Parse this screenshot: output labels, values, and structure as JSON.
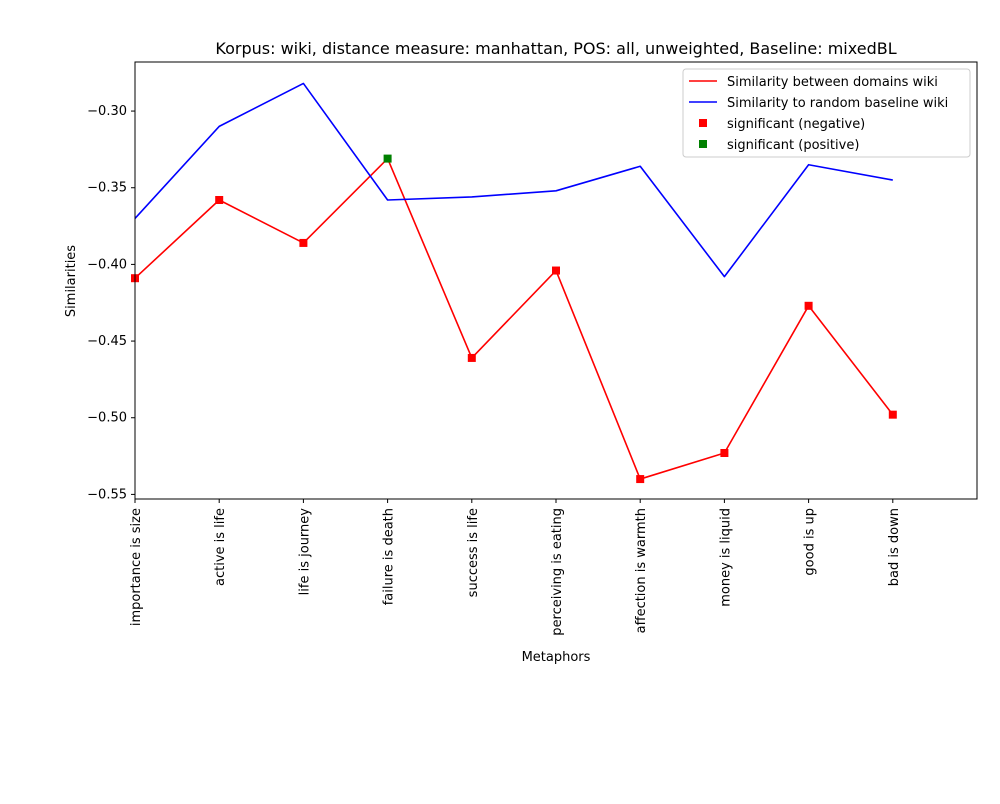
{
  "chart_data": {
    "type": "line",
    "title": "Korpus: wiki, distance measure: manhattan, POS: all, unweighted, Baseline: mixedBL",
    "xlabel": "Metaphors",
    "ylabel": "Similarities",
    "categories": [
      "importance is size",
      "active is life",
      "life is journey",
      "failure is death",
      "success is life",
      "perceiving is eating",
      "affection is warmth",
      "money is liquid",
      "good is up",
      "bad is down"
    ],
    "xlim": [
      0,
      10
    ],
    "ylim": [
      -0.553,
      -0.268
    ],
    "yticks": [
      -0.55,
      -0.5,
      -0.45,
      -0.4,
      -0.35,
      -0.3
    ],
    "ytick_labels": [
      "−0.55",
      "−0.50",
      "−0.45",
      "−0.40",
      "−0.35",
      "−0.30"
    ],
    "grid": false,
    "legend_position": "top-right",
    "series": [
      {
        "name": "Similarity between domains wiki",
        "color": "#ff0000",
        "style": "line",
        "values": [
          -0.409,
          -0.358,
          -0.386,
          -0.331,
          -0.461,
          -0.404,
          -0.54,
          -0.523,
          -0.427,
          -0.498
        ]
      },
      {
        "name": "Similarity to random baseline wiki",
        "color": "#0000ff",
        "style": "line",
        "values": [
          -0.37,
          -0.31,
          -0.282,
          -0.358,
          -0.356,
          -0.352,
          -0.336,
          -0.408,
          -0.335,
          -0.345
        ]
      },
      {
        "name": "significant (negative)",
        "color": "#ff0000",
        "style": "marker",
        "indices": [
          0,
          1,
          2,
          4,
          5,
          6,
          7,
          8,
          9
        ]
      },
      {
        "name": "significant (positive)",
        "color": "#008000",
        "style": "marker",
        "indices": [
          3
        ]
      }
    ]
  }
}
